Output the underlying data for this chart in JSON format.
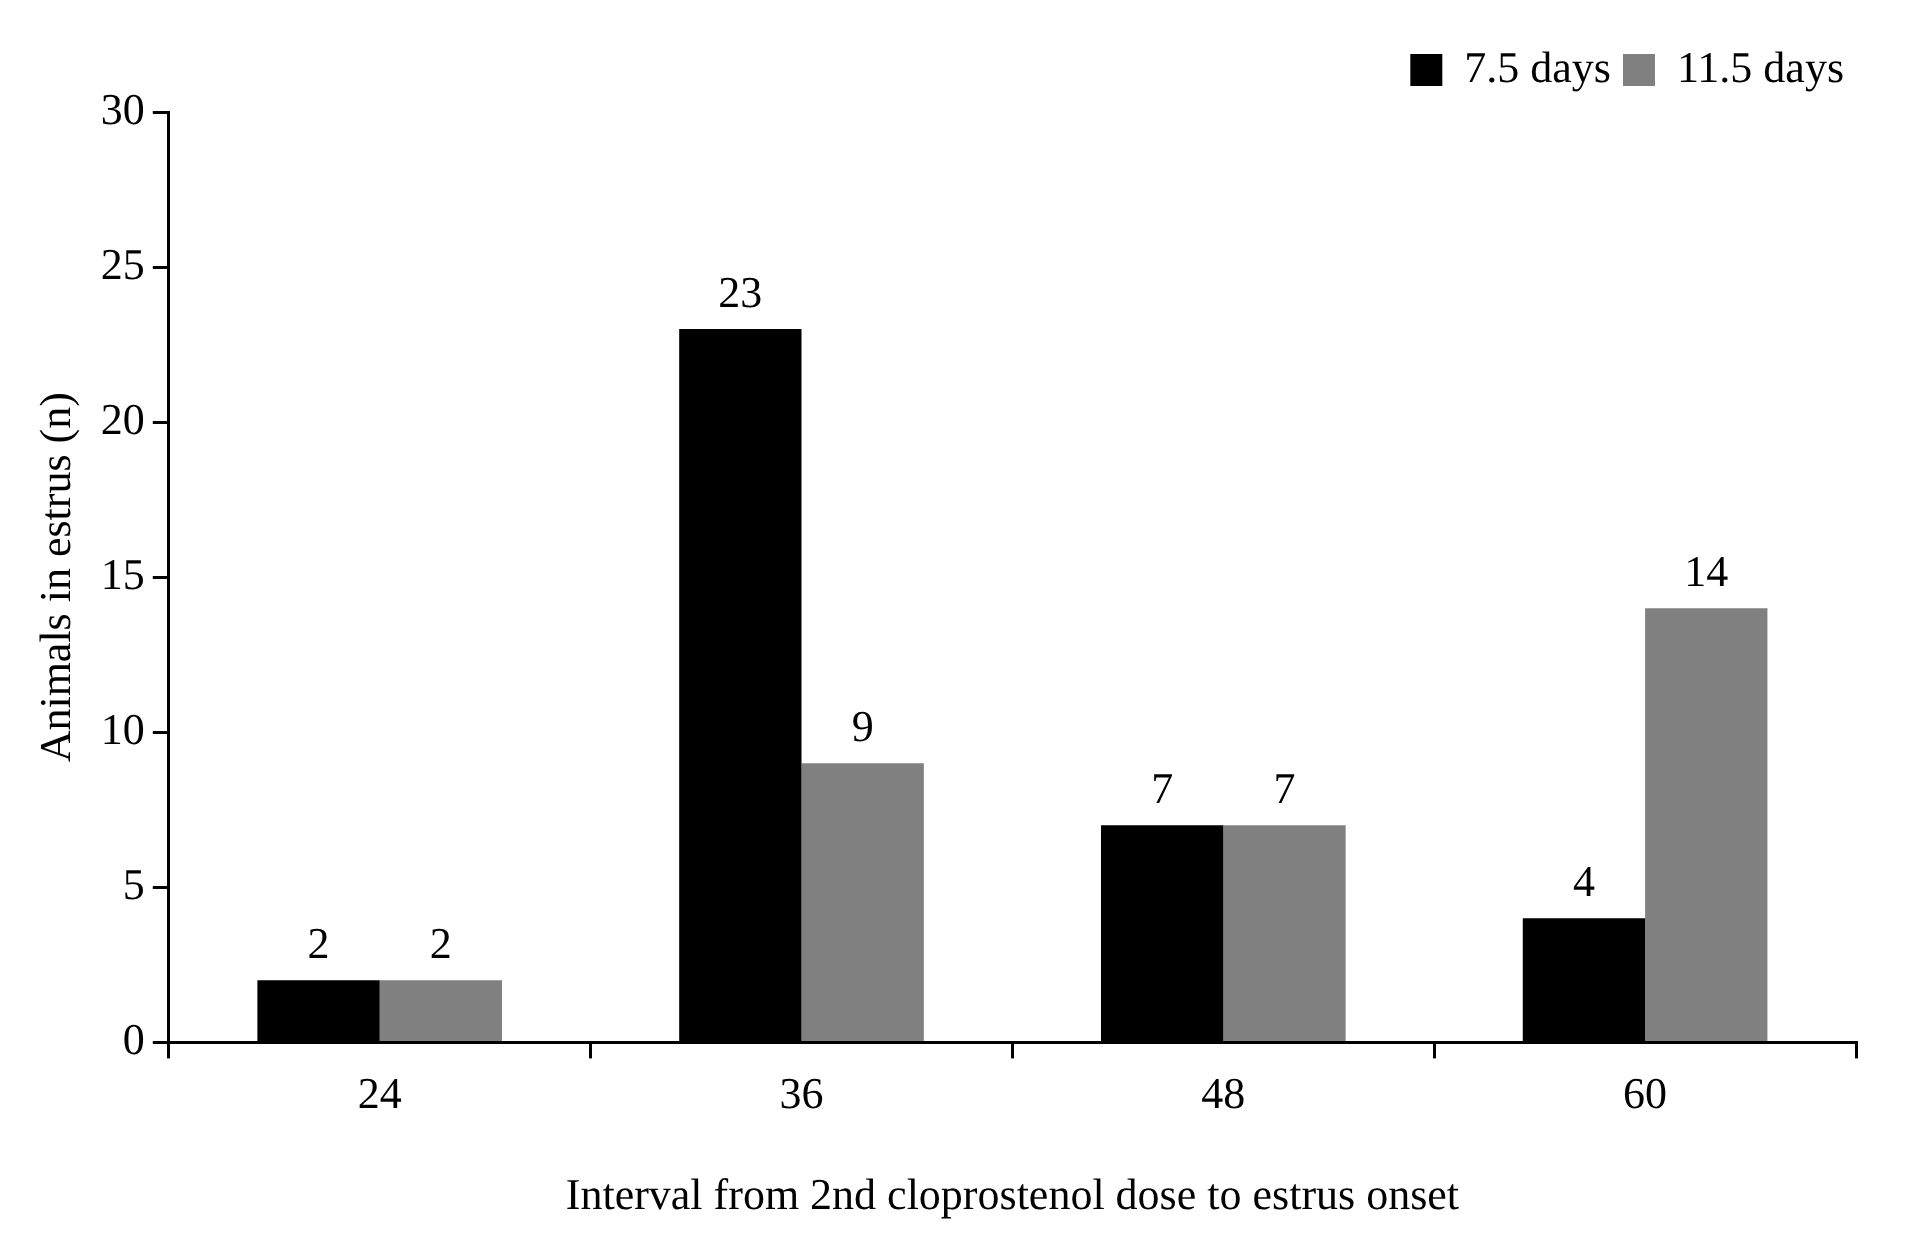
{
  "chart_data": {
    "type": "bar",
    "xlabel": "Interval from 2nd cloprostenol dose to estrus onset",
    "ylabel": "Animals in estrus (n)",
    "categories": [
      "24",
      "36",
      "48",
      "60"
    ],
    "series": [
      {
        "name": "7.5 days",
        "color": "#000000",
        "values": [
          2,
          23,
          7,
          4
        ]
      },
      {
        "name": "11.5 days",
        "color": "#808080",
        "values": [
          2,
          9,
          7,
          14
        ]
      }
    ],
    "ylim": [
      0,
      30
    ],
    "yticks": [
      0,
      5,
      10,
      15,
      20,
      25,
      30
    ],
    "grid": false,
    "legend": "top right",
    "data_labels": true
  }
}
